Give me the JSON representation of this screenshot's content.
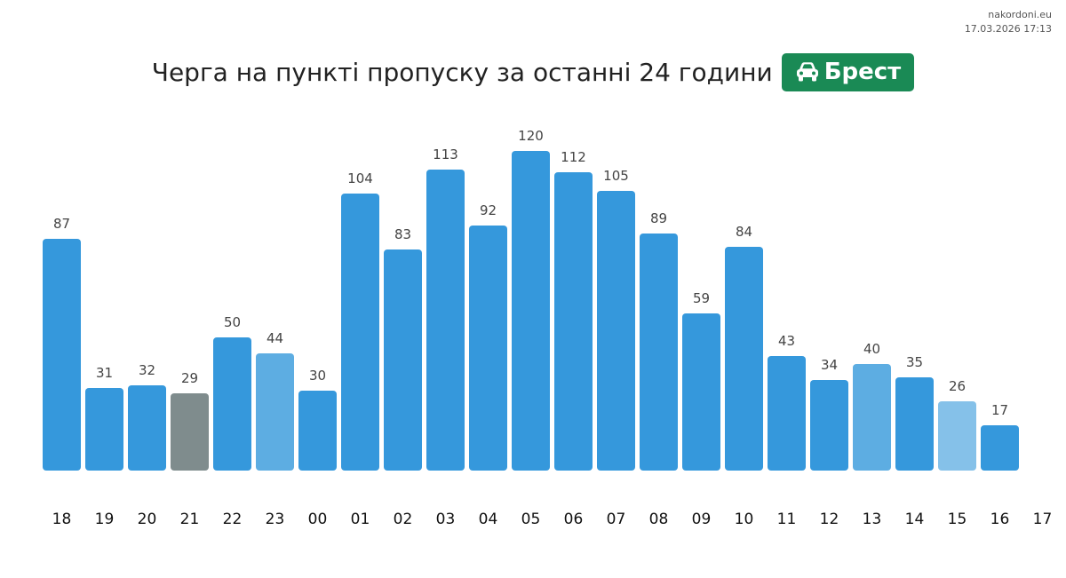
{
  "site": {
    "name": "nakordoni.eu",
    "timestamp": "17.03.2026 17:13"
  },
  "header": {
    "title": "Черга на пункті пропуску за останні 24 години",
    "badge_label": "Брест",
    "badge_icon": "car-icon",
    "badge_color": "#1a8a55"
  },
  "chart_data": {
    "type": "bar",
    "title": "Черга на пункті пропуску за останні 24 години",
    "categories": [
      "18",
      "19",
      "20",
      "21",
      "22",
      "23",
      "00",
      "01",
      "02",
      "03",
      "04",
      "05",
      "06",
      "07",
      "08",
      "09",
      "10",
      "11",
      "12",
      "13",
      "14",
      "15",
      "16"
    ],
    "extra_tick": "17",
    "values": [
      87,
      31,
      32,
      29,
      50,
      44,
      30,
      104,
      83,
      113,
      92,
      120,
      112,
      105,
      89,
      59,
      84,
      43,
      34,
      40,
      35,
      26,
      17
    ],
    "colors": [
      "#3598dc",
      "#3598dc",
      "#3598dc",
      "#7f8c8d",
      "#3598dc",
      "#5dade2",
      "#3598dc",
      "#3598dc",
      "#3598dc",
      "#3598dc",
      "#3598dc",
      "#3598dc",
      "#3598dc",
      "#3598dc",
      "#3598dc",
      "#3598dc",
      "#3598dc",
      "#3598dc",
      "#3598dc",
      "#5dade2",
      "#3598dc",
      "#85c1e9",
      "#3598dc"
    ],
    "ylim": [
      0,
      120
    ],
    "xlabel": "",
    "ylabel": "",
    "grid": false,
    "legend": "none"
  }
}
